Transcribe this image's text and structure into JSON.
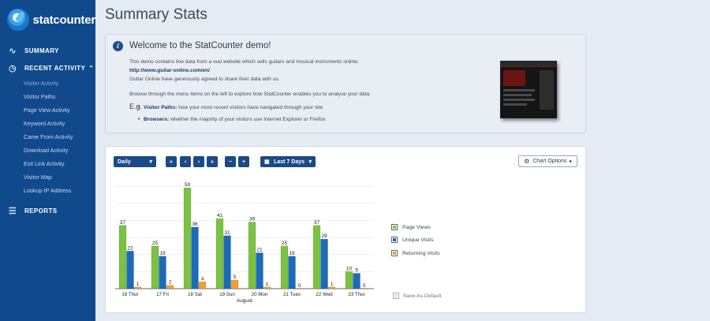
{
  "sidebar": {
    "logo_text": "statcounter",
    "summary": "SUMMARY",
    "recent_activity": "RECENT ACTIVITY",
    "items": [
      {
        "label": "Visitor Activity"
      },
      {
        "label": "Visitor Paths"
      },
      {
        "label": "Page View Activity"
      },
      {
        "label": "Keyword Activity"
      },
      {
        "label": "Came From Activity"
      },
      {
        "label": "Download Activity"
      },
      {
        "label": "Exit Link Activity"
      },
      {
        "label": "Visitor Map"
      },
      {
        "label": "Lookup IP Address"
      }
    ],
    "reports": "REPORTS"
  },
  "page_title": "Summary Stats",
  "welcome": {
    "title": "Welcome to the StatCounter demo!",
    "line1": "This demo contains live data from a real website which sells guitars and musical instruments online;",
    "link": "http://www.guitar-online.com/en/",
    "line2": "Guitar Online have generously agreed to share their data with us.",
    "line3": "Browse through the menu items on the left to explore how StatCounter enables you to analyse your data.",
    "eg": "E.g.",
    "bullets": [
      {
        "bold": "Visitor Paths:",
        "text": " how your most recent visitors have navigated through your site"
      },
      {
        "bold": "Browsers:",
        "text": " whether the majority of your visitors use Internet Explorer or Firefox"
      }
    ]
  },
  "controls": {
    "period": "Daily",
    "first": "«",
    "prev": "‹",
    "next": "›",
    "last": "»",
    "minus": "−",
    "plus": "+",
    "range": "Last 7 Days",
    "chart_options": "Chart Options"
  },
  "chart_data": {
    "type": "bar",
    "categories": [
      "16 Thur",
      "17 Fri",
      "18 Sat",
      "19 Sun",
      "20 Mon",
      "21 Tues",
      "22 Wed",
      "23 Thur"
    ],
    "xlabel": "August",
    "ylim": [
      0,
      60
    ],
    "series": [
      {
        "name": "Page Views",
        "color": "#7cc242",
        "values": [
          37,
          25,
          59,
          41,
          39,
          25,
          37,
          10
        ]
      },
      {
        "name": "Unique Visits",
        "color": "#1c6bb8",
        "values": [
          22,
          19,
          36,
          31,
          21,
          19,
          29,
          9
        ]
      },
      {
        "name": "Returning Visits",
        "color": "#f0a030",
        "values": [
          1,
          2,
          4,
          5,
          1,
          0,
          1,
          0
        ]
      }
    ],
    "grid": true,
    "legend": "right"
  },
  "save_default": "Save As Default"
}
